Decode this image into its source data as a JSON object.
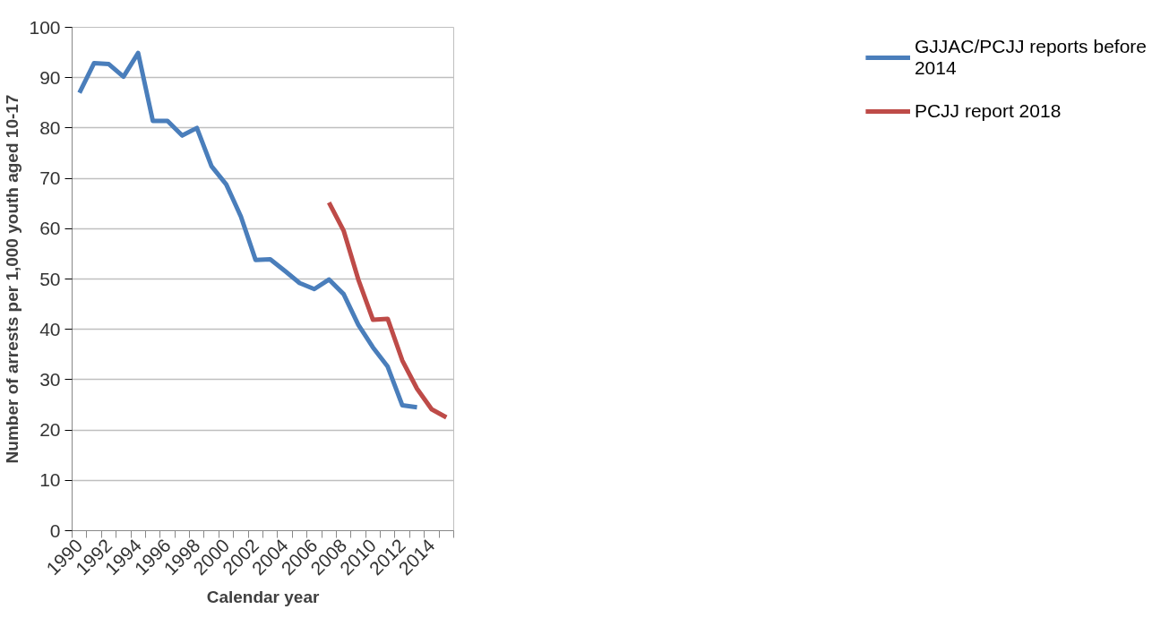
{
  "chart_data": {
    "type": "line",
    "xlabel": "Calendar year",
    "ylabel": "Number of arrests per 1,000 youth aged 10-17",
    "categories": [
      "1990",
      null,
      "1992",
      null,
      "1994",
      null,
      "1996",
      null,
      "1998",
      null,
      "2000",
      null,
      "2002",
      null,
      "2004",
      null,
      "2006",
      null,
      "2008",
      null,
      "2010",
      null,
      "2012",
      null,
      "2014",
      null
    ],
    "series": [
      {
        "name": "GJJAC/PCJJ reports before 2014",
        "color": "#4a7ebb",
        "values": [
          87.0,
          92.9,
          92.7,
          90.2,
          94.9,
          81.4,
          81.4,
          78.5,
          80.0,
          72.4,
          68.8,
          62.4,
          53.8,
          53.9,
          51.6,
          49.2,
          48.0,
          49.9,
          47.0,
          40.9,
          36.4,
          32.6,
          24.9,
          24.5,
          null,
          null
        ]
      },
      {
        "name": "PCJJ report 2018",
        "color": "#be4b48",
        "values": [
          null,
          null,
          null,
          null,
          null,
          null,
          null,
          null,
          null,
          null,
          null,
          null,
          null,
          null,
          null,
          null,
          null,
          65.2,
          59.6,
          49.9,
          41.9,
          42.1,
          33.8,
          28.2,
          24.1,
          22.5
        ]
      }
    ],
    "ylim": [
      0,
      100
    ],
    "yticks": [
      0,
      10,
      20,
      30,
      40,
      50,
      60,
      70,
      80,
      90,
      100
    ],
    "grid": "y",
    "legend": "right",
    "line_style": "solid",
    "marker": "none"
  }
}
